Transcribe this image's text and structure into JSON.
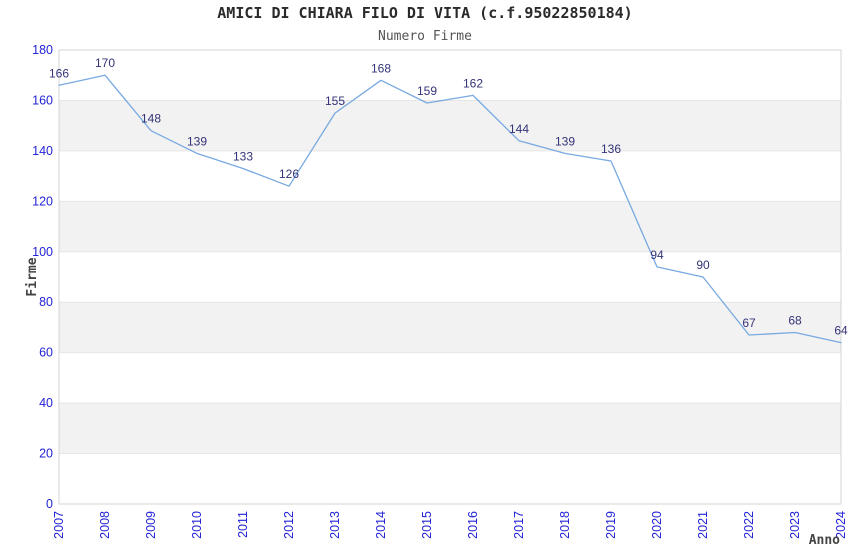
{
  "chart_data": {
    "type": "line",
    "title": "AMICI DI CHIARA FILO DI VITA (c.f.95022850184)",
    "subtitle": "Numero Firme",
    "xlabel": "Anno",
    "ylabel": "Firme",
    "categories": [
      "2007",
      "2008",
      "2009",
      "2010",
      "2011",
      "2012",
      "2013",
      "2014",
      "2015",
      "2016",
      "2017",
      "2018",
      "2019",
      "2020",
      "2021",
      "2022",
      "2023",
      "2024"
    ],
    "series": [
      {
        "name": "Numero Firme",
        "values": [
          166,
          170,
          148,
          139,
          133,
          126,
          155,
          168,
          159,
          162,
          144,
          139,
          136,
          94,
          90,
          67,
          68,
          64
        ]
      }
    ],
    "data_labels_visible": true,
    "ylim": [
      0,
      180
    ],
    "ytick_step": 20,
    "grid": "horizontal-bands-alternating",
    "legend": "none",
    "x_tick_rotation": -90,
    "colors": {
      "line": "#78a9e0",
      "tick_label": "#2323d7",
      "data_label": "#333377",
      "band_fill": "#f2f2f2",
      "grid_line": "#e6e6e6",
      "plot_border": "#d4d4d4",
      "title": "#2a2a2a",
      "subtitle": "#555555",
      "axis_title": "#444444",
      "background": "#ffffff"
    }
  }
}
